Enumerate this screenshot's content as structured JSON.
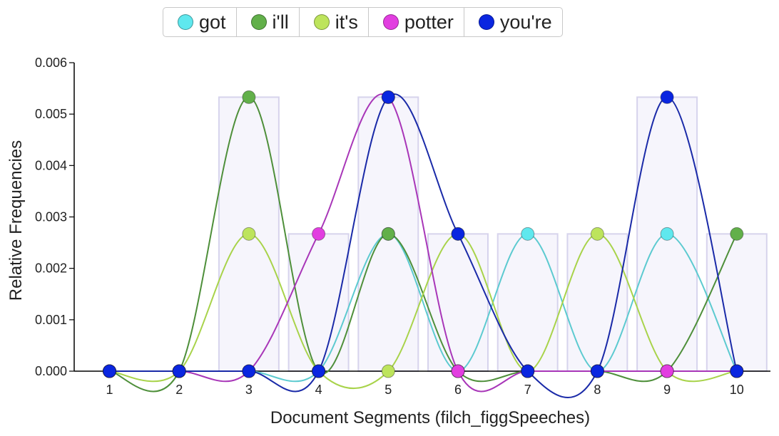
{
  "legend": [
    {
      "label": "got",
      "color": "#5fe8ee"
    },
    {
      "label": "i'll",
      "color": "#62b04a"
    },
    {
      "label": "it's",
      "color": "#bde45c"
    },
    {
      "label": "potter",
      "color": "#e23ee0"
    },
    {
      "label": "you're",
      "color": "#0a26e0"
    }
  ],
  "chart_data": {
    "type": "line",
    "xlabel": "Document Segments (filch_figgSpeeches)",
    "ylabel": "Relative Frequencies",
    "categories": [
      "1",
      "2",
      "3",
      "4",
      "5",
      "6",
      "7",
      "8",
      "9",
      "10"
    ],
    "ylim": [
      0,
      0.006
    ],
    "yticks": [
      "0.000",
      "0.001",
      "0.002",
      "0.003",
      "0.004",
      "0.005",
      "0.006"
    ],
    "bars": [
      0,
      0,
      0.00533,
      0.00267,
      0.00533,
      0.00267,
      0.00267,
      0.00267,
      0.00533,
      0.00267
    ],
    "series": [
      {
        "name": "got",
        "color": "#5fe8ee",
        "line_color": "#5ccad0",
        "values": [
          0,
          0,
          0,
          0,
          0.00267,
          0,
          0.00267,
          0,
          0.00267,
          0
        ]
      },
      {
        "name": "i'll",
        "color": "#62b04a",
        "line_color": "#4e8f3a",
        "values": [
          0,
          0,
          0.00533,
          0,
          0.00267,
          0,
          0,
          0,
          0,
          0.00267
        ]
      },
      {
        "name": "it's",
        "color": "#bde45c",
        "line_color": "#a8d34a",
        "values": [
          0,
          0,
          0.00267,
          0,
          0,
          0.00267,
          0,
          0.00267,
          0,
          0
        ]
      },
      {
        "name": "potter",
        "color": "#e23ee0",
        "line_color": "#a836b8",
        "values": [
          0,
          0,
          0,
          0.00267,
          0.00533,
          0,
          0,
          0,
          0,
          0
        ]
      },
      {
        "name": "you're",
        "color": "#0a26e0",
        "line_color": "#1a2aa8",
        "values": [
          0,
          0,
          0,
          0,
          0.00533,
          0.00267,
          0,
          0,
          0.00533,
          0
        ]
      }
    ]
  }
}
